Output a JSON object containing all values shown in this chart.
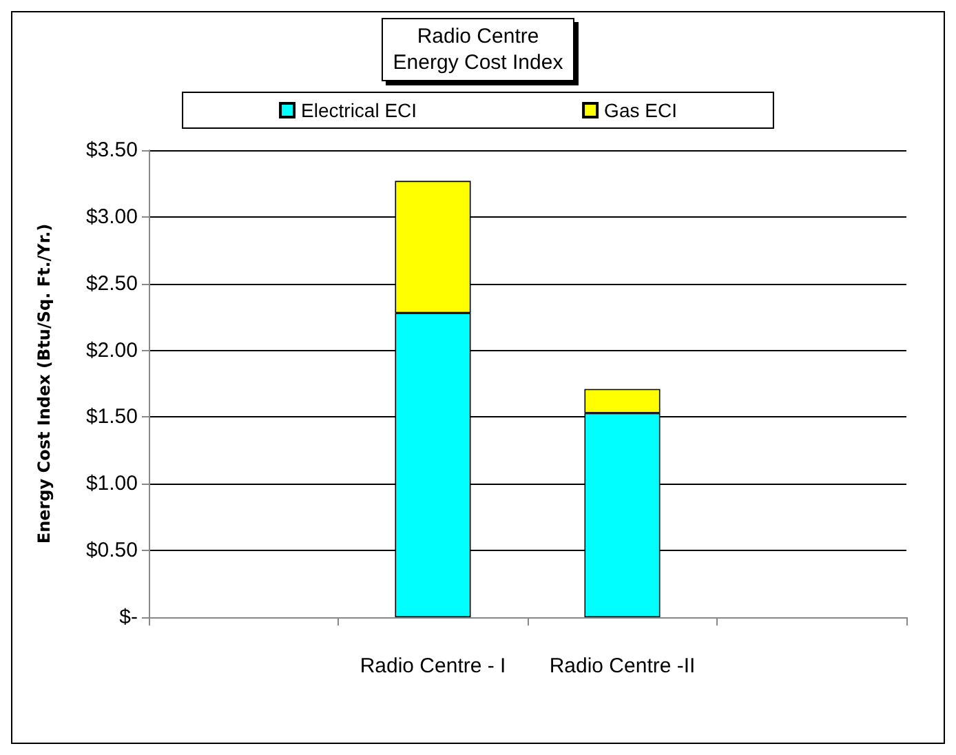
{
  "chart_data": {
    "type": "bar",
    "title": "Radio Centre\nEnergy Cost Index",
    "ylabel": "Energy Cost Index (Btu/Sq. Ft./Yr.)",
    "categories": [
      null,
      "Radio Centre - I",
      "Radio Centre -II",
      null
    ],
    "series": [
      {
        "name": "Electrical ECI",
        "color": "#00ffff",
        "values": [
          null,
          2.28,
          1.53,
          null
        ]
      },
      {
        "name": "Gas ECI",
        "color": "#ffff00",
        "values": [
          null,
          0.99,
          0.18,
          null
        ]
      }
    ],
    "stacked": true,
    "ylim": [
      0,
      3.5
    ],
    "yticks": [
      {
        "value": 0,
        "label": "$-"
      },
      {
        "value": 0.5,
        "label": "$0.50"
      },
      {
        "value": 1,
        "label": "$1.00"
      },
      {
        "value": 1.5,
        "label": "$1.50"
      },
      {
        "value": 2,
        "label": "$2.00"
      },
      {
        "value": 2.5,
        "label": "$2.50"
      },
      {
        "value": 3,
        "label": "$3.00"
      },
      {
        "value": 3.5,
        "label": "$3.50"
      }
    ],
    "grid": "y",
    "legend": "top"
  }
}
